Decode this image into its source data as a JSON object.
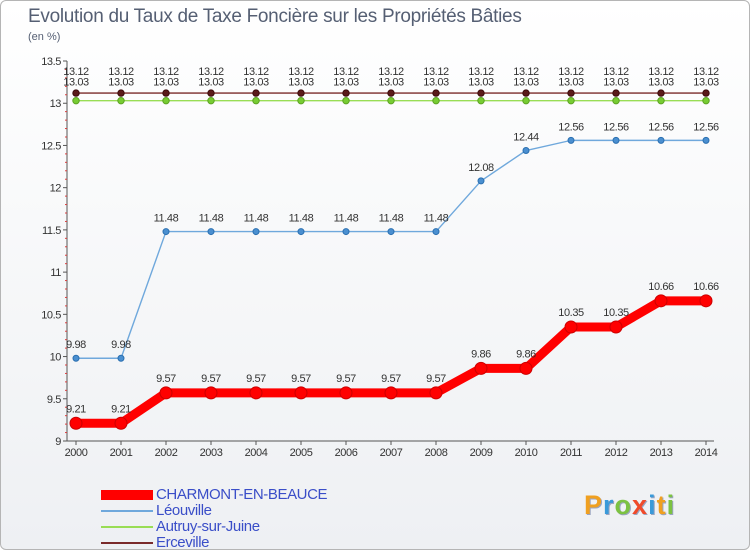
{
  "title": "Evolution du Taux de Taxe Foncière sur les Propriétés Bâties",
  "subtitle": "(en %)",
  "chart_data": {
    "type": "line",
    "title": "Evolution du Taux de Taxe Foncière sur les Propriétés Bâties",
    "ylabel": "(en %)",
    "xlabel": "",
    "categories": [
      "2000",
      "2001",
      "2002",
      "2003",
      "2004",
      "2005",
      "2006",
      "2007",
      "2008",
      "2009",
      "2010",
      "2011",
      "2012",
      "2013",
      "2014"
    ],
    "ylim": [
      9,
      13.5
    ],
    "yticks": [
      "9",
      "9.5",
      "10",
      "10.5",
      "11",
      "11.5",
      "12",
      "12.5",
      "13",
      "13.5"
    ],
    "grid": false,
    "series": [
      {
        "name": "CHARMONT-EN-BEAUCE",
        "color": "#ff0000",
        "values": [
          9.21,
          9.21,
          9.57,
          9.57,
          9.57,
          9.57,
          9.57,
          9.57,
          9.57,
          9.86,
          9.86,
          10.35,
          10.35,
          10.66,
          10.66
        ],
        "labels": [
          "9.21",
          "9.21",
          "9.57",
          "9.57",
          "9.57",
          "9.57",
          "9.57",
          "9.57",
          "9.57",
          "9.86",
          "9.86",
          "10.35",
          "10.35",
          "10.66",
          "10.66"
        ]
      },
      {
        "name": "Léouville",
        "color": "#6fa8dc",
        "values": [
          9.98,
          9.98,
          11.48,
          11.48,
          11.48,
          11.48,
          11.48,
          11.48,
          11.48,
          12.08,
          12.44,
          12.56,
          12.56,
          12.56,
          12.56
        ],
        "labels": [
          "9.98",
          "9.98",
          "11.48",
          "11.48",
          "11.48",
          "11.48",
          "11.48",
          "11.48",
          "11.48",
          "12.08",
          "12.44",
          "12.56",
          "12.56",
          "12.56",
          "12.56"
        ]
      },
      {
        "name": "Autruy-sur-Juine",
        "color": "#99dd55",
        "values": [
          13.03,
          13.03,
          13.03,
          13.03,
          13.03,
          13.03,
          13.03,
          13.03,
          13.03,
          13.03,
          13.03,
          13.03,
          13.03,
          13.03,
          13.03
        ],
        "labels": [
          "13.03",
          "13.03",
          "13.03",
          "13.03",
          "13.03",
          "13.03",
          "13.03",
          "13.03",
          "13.03",
          "13.03",
          "13.03",
          "13.03",
          "13.03",
          "13.03",
          "13.03"
        ]
      },
      {
        "name": "Erceville",
        "color": "#7a2a2a",
        "values": [
          13.12,
          13.12,
          13.12,
          13.12,
          13.12,
          13.12,
          13.12,
          13.12,
          13.12,
          13.12,
          13.12,
          13.12,
          13.12,
          13.12,
          13.12
        ],
        "labels": [
          "13.12",
          "13.12",
          "13.12",
          "13.12",
          "13.12",
          "13.12",
          "13.12",
          "13.12",
          "13.12",
          "13.12",
          "13.12",
          "13.12",
          "13.12",
          "13.12",
          "13.12"
        ]
      }
    ]
  },
  "legend": [
    {
      "label": "CHARMONT-EN-BEAUCE",
      "color": "#ff0000"
    },
    {
      "label": "Léouville",
      "color": "#6fa8dc"
    },
    {
      "label": "Autruy-sur-Juine",
      "color": "#99dd55"
    },
    {
      "label": "Erceville",
      "color": "#7a2a2a"
    }
  ],
  "logo": {
    "letters": [
      "P",
      "r",
      "o",
      "x",
      "i",
      "t",
      "i"
    ],
    "colors": [
      "#f0a020",
      "#3a9ad9",
      "#7cc242",
      "#f04a2a",
      "#3a9ad9",
      "#f0a020",
      "#7cc242"
    ]
  }
}
